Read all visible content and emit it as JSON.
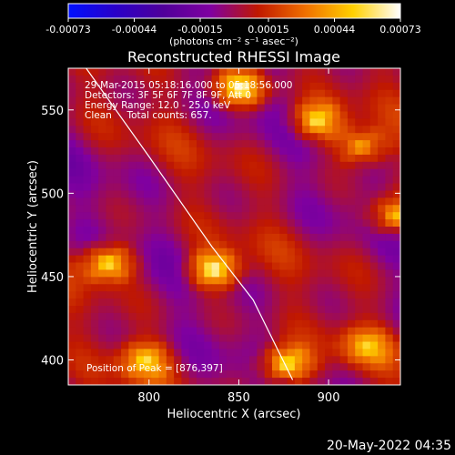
{
  "chart_data": {
    "type": "heatmap",
    "title": "Reconstructed RHESSI Image",
    "xlabel": "Heliocentric X (arcsec)",
    "ylabel": "Heliocentric Y (arcsec)",
    "xlim": [
      755,
      940
    ],
    "ylim": [
      385,
      575
    ],
    "x_ticks": [
      "800",
      "850",
      "900"
    ],
    "y_ticks": [
      "400",
      "450",
      "500",
      "550"
    ],
    "colorbar": {
      "ticks": [
        "-0.00073",
        "-0.00044",
        "-0.00015",
        "0.00015",
        "0.00044",
        "0.00073"
      ],
      "unit_label": "(photons cm⁻² s⁻¹ asec⁻²)",
      "range": [
        -0.00073,
        0.00073
      ],
      "colors": [
        "#0010ff",
        "#2a00c8",
        "#50009a",
        "#8000a0",
        "#c01800",
        "#f07000",
        "#ffd000",
        "#ffffff"
      ]
    },
    "info_lines": [
      "29-Mar-2015 05:18:16.000 to 05:18:56.000",
      "Detectors: 3F 5F 6F 7F 8F 9F, Att 0",
      "Energy Range: 12.0 - 25.0 keV",
      "Clean     Total counts: 657."
    ],
    "peak_label": "Position of Peak = [876,397]",
    "peak": [
      876,
      397
    ],
    "bright_sources": [
      {
        "x": 851,
        "y": 563,
        "peak": 0.0007
      },
      {
        "x": 893,
        "y": 543,
        "peak": 0.00062
      },
      {
        "x": 918,
        "y": 528,
        "peak": 0.00055
      },
      {
        "x": 937,
        "y": 486,
        "peak": 0.00058
      },
      {
        "x": 777,
        "y": 458,
        "peak": 0.00068
      },
      {
        "x": 836,
        "y": 454,
        "peak": 0.00072
      },
      {
        "x": 798,
        "y": 400,
        "peak": 0.0005
      },
      {
        "x": 876,
        "y": 397,
        "peak": 0.00073
      },
      {
        "x": 921,
        "y": 408,
        "peak": 0.0004
      }
    ],
    "limb_curve": [
      [
        765,
        575
      ],
      [
        800,
        522
      ],
      [
        835,
        468
      ],
      [
        858,
        436
      ],
      [
        880,
        388
      ]
    ]
  },
  "footer": {
    "date": "20-May-2022 04:35"
  }
}
